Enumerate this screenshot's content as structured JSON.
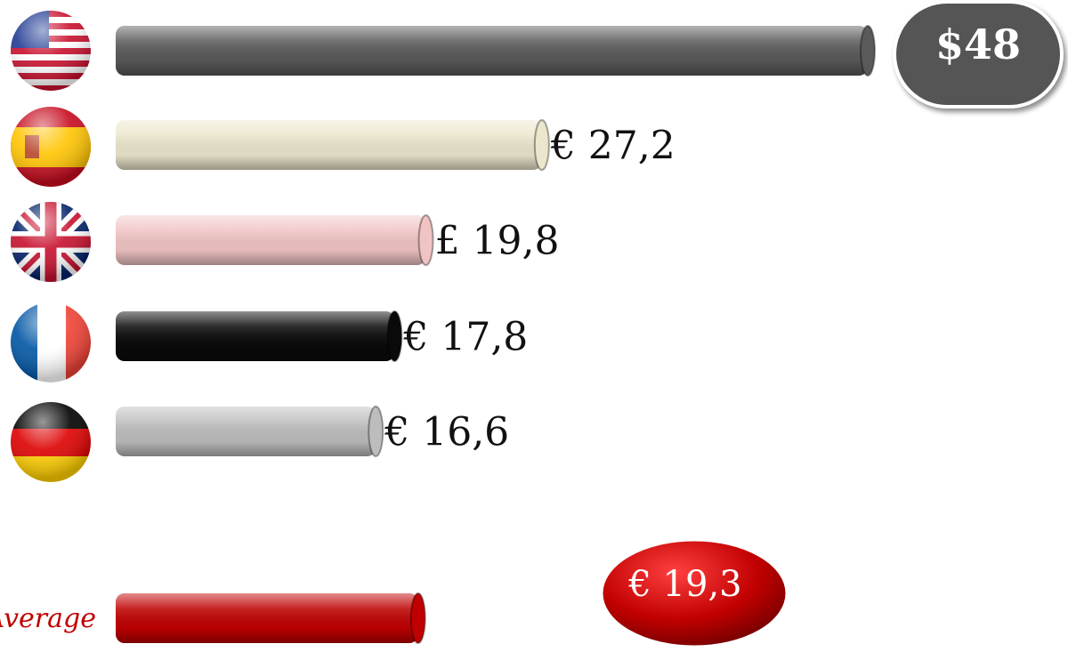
{
  "chart_data": {
    "type": "bar",
    "orientation": "horizontal",
    "categories": [
      null,
      null,
      null,
      null,
      null
    ],
    "values": [
      48,
      27.2,
      19.8,
      17.8,
      16.6
    ],
    "value_labels": [
      "$48",
      "€ 27,2",
      "£ 19,8",
      "€ 17,8",
      "€ 16,6"
    ],
    "colors": [
      "#5a5a5a",
      "#ebe6cc",
      "#f1c4c4",
      "#0a0a0a",
      "#bdbdbd"
    ],
    "average": {
      "label": "Average",
      "value": 19.3,
      "value_label": "€ 19,3",
      "color": "#c00000"
    }
  }
}
